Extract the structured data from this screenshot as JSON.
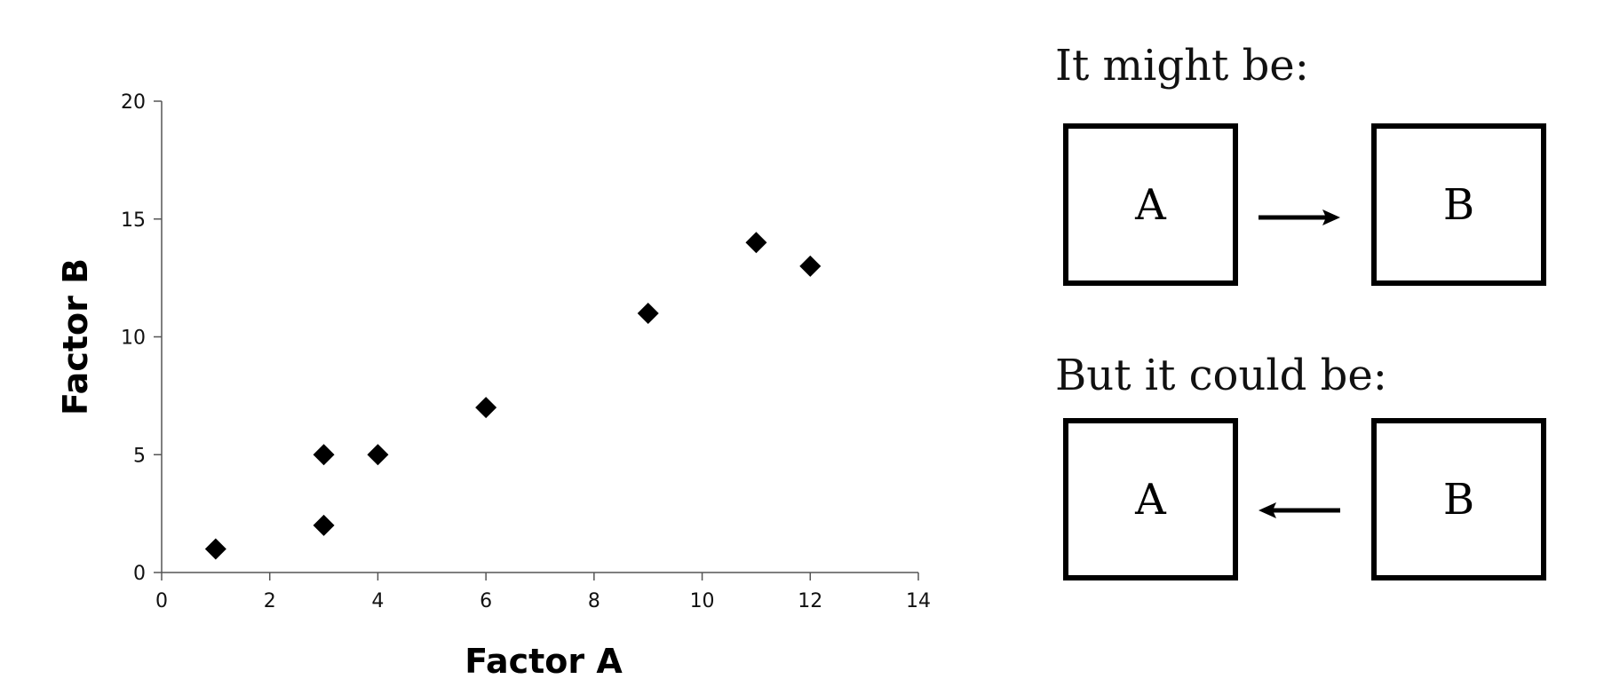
{
  "chart_data": {
    "type": "scatter",
    "title": "",
    "xlabel": "Factor A",
    "ylabel": "Factor B",
    "xlim": [
      0,
      14
    ],
    "ylim": [
      0,
      20
    ],
    "xticks": [
      0,
      2,
      4,
      6,
      8,
      10,
      12,
      14
    ],
    "yticks": [
      0,
      5,
      10,
      15,
      20
    ],
    "grid": false,
    "marker": "diamond",
    "marker_color": "#000000",
    "series": [
      {
        "x": [
          1,
          3,
          3,
          4,
          6,
          9,
          11,
          12
        ],
        "y": [
          1,
          2,
          5,
          5,
          7,
          11,
          14,
          13
        ]
      }
    ]
  },
  "diagram": {
    "heading_1": "It might be:",
    "heading_2": "But it could be:",
    "row_1": {
      "left_box": "A",
      "right_box": "B",
      "arrow": "right"
    },
    "row_2": {
      "left_box": "A",
      "right_box": "B",
      "arrow": "left"
    }
  }
}
